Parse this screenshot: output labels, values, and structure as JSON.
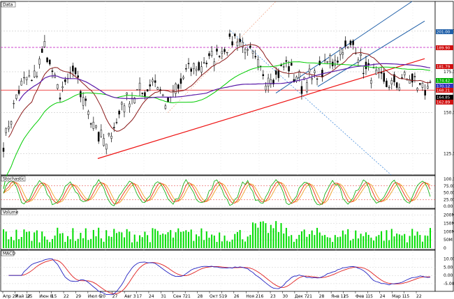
{
  "chart_data": [
    {
      "panel": "price",
      "type": "candlestick",
      "title": "Data",
      "y_ticks": [
        "200.00",
        "175.00",
        "150.00",
        "125.00"
      ],
      "y_range": [
        112,
        218
      ],
      "overlays": [
        {
          "name": "moving-average-short",
          "color": "#8b1a1a"
        },
        {
          "name": "moving-average-medium",
          "color": "#00cc00"
        },
        {
          "name": "moving-average-long",
          "color": "#5a1aa8"
        },
        {
          "name": "trendline",
          "color": "#ee1111"
        },
        {
          "name": "upper-channel",
          "color": "#1f5fa8"
        },
        {
          "name": "lower-channel-dotted",
          "color": "#2f7fd8"
        }
      ],
      "horizontal_levels": [
        {
          "value": 189.9,
          "color": "#cc44cc",
          "style": "dashed"
        },
        {
          "value": 163.8,
          "color": "#ee3333",
          "style": "solid"
        }
      ],
      "price_labels": [
        {
          "text": "201.00",
          "bg": "#1f5fa8"
        },
        {
          "text": "189.90",
          "bg": "#d01010"
        },
        {
          "text": "181.79",
          "bg": "#d01010"
        },
        {
          "text": "174.42",
          "bg": "#00b000"
        },
        {
          "text": "170.12",
          "bg": "#3030c0"
        },
        {
          "text": "168.21",
          "bg": "#d01010"
        },
        {
          "text": "164.85",
          "bg": "#000000"
        },
        {
          "text": "162.89",
          "bg": "#d01010"
        }
      ],
      "x_labels": [
        "Апр 27",
        "Май 12",
        "25",
        "Июн 8",
        "15",
        "22",
        "29",
        "Июл 6",
        "20",
        "27",
        "Авг 3",
        "17",
        "24",
        "31",
        "Сен 7",
        "21",
        "28",
        "Окт 5",
        "19",
        "26",
        "Ноя 2",
        "16",
        "23",
        "30",
        "Дек 7",
        "21",
        "28",
        "Янв 11",
        "25",
        "Фев 1",
        "15",
        "24",
        "Мар 1",
        "15",
        "22"
      ],
      "last_close": 164.85
    },
    {
      "panel": "stochastic",
      "type": "line",
      "title": "Stochastic",
      "y_ticks": [
        "100.00",
        "75.00",
        "50.00",
        "25.00",
        "0.00"
      ],
      "series": [
        {
          "name": "%K",
          "color": "#00aa00"
        },
        {
          "name": "%D",
          "color": "#ee3311"
        },
        {
          "name": "slow",
          "color": "#f0a020"
        }
      ]
    },
    {
      "panel": "volume",
      "type": "bar",
      "title": "Volume",
      "y_ticks": [
        "200M",
        "150M",
        "100M",
        "50M",
        "0"
      ],
      "series_color": "#00dd00"
    },
    {
      "panel": "macd",
      "type": "line",
      "title": "MACD",
      "y_ticks": [
        "10.00",
        "5.00",
        "0.00",
        "-5.00"
      ],
      "series": [
        {
          "name": "MACD",
          "color": "#2020c0"
        },
        {
          "name": "Signal",
          "color": "#e02020"
        }
      ]
    }
  ]
}
